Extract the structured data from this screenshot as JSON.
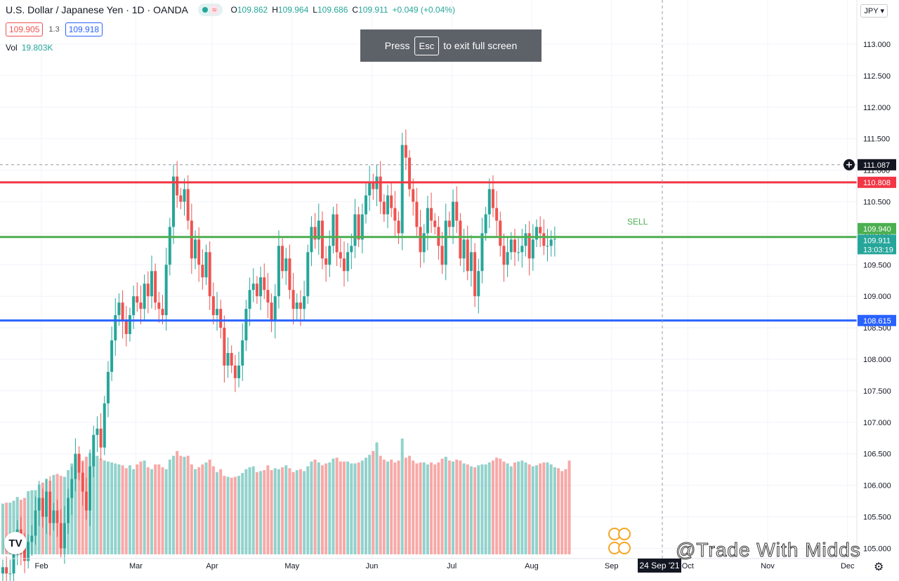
{
  "header": {
    "symbol_title": "U.S. Dollar / Japanese Yen · 1D · OANDA",
    "wave_icon": "≈",
    "ohlc": {
      "o_label": "O",
      "o": "109.862",
      "h_label": "H",
      "h": "109.964",
      "l_label": "L",
      "l": "109.686",
      "c_label": "C",
      "c": "109.911",
      "change": "+0.049 (+0.04%)"
    },
    "sell_price": "109.905",
    "spread": "1.3",
    "buy_price": "109.918",
    "vol_label": "Vol",
    "vol_value": "19.803K",
    "currency": "JPY"
  },
  "toast": {
    "pre": "Press",
    "key": "Esc",
    "post": "to exit full screen"
  },
  "crosshair": {
    "price_label": "111.087",
    "date_label": "24 Sep '21",
    "price": 111.087
  },
  "price_tags": {
    "resistance": "110.808",
    "sell_level": "109.940",
    "last": "109.911",
    "countdown": "13:03:19",
    "support": "108.615"
  },
  "annotation": {
    "sell_text": "SELL"
  },
  "watermark": "@Trade With Midds",
  "logo_text": "TV",
  "colors": {
    "up": "#26a69a",
    "down": "#ef5350",
    "resistance": "#f23645",
    "sell_line": "#4caf50",
    "support": "#2962ff"
  },
  "chart_data": {
    "type": "candlestick",
    "y_ticks": [
      "113.000",
      "112.500",
      "112.000",
      "111.500",
      "111.000",
      "110.500",
      "110.000",
      "109.500",
      "109.000",
      "108.500",
      "108.000",
      "107.500",
      "107.000",
      "106.500",
      "106.000",
      "105.500",
      "105.000"
    ],
    "ylim": [
      104.9,
      113.65
    ],
    "x_tick_labels": [
      "Feb",
      "Mar",
      "Apr",
      "May",
      "Jun",
      "Jul",
      "Aug",
      "Sep",
      "Oct",
      "Nov",
      "Dec"
    ],
    "months_start_index": [
      0,
      26,
      47,
      69,
      91,
      113,
      135,
      157,
      178,
      200,
      222
    ],
    "horizontal_levels": [
      {
        "name": "resistance",
        "value": 110.808
      },
      {
        "name": "sell",
        "value": 109.94
      },
      {
        "name": "support",
        "value": 108.615
      }
    ],
    "closes": [
      104.7,
      104.6,
      104.6,
      104.9,
      105.3,
      105.0,
      104.8,
      105.1,
      105.2,
      105.6,
      105.8,
      105.5,
      105.9,
      105.4,
      105.6,
      105.4,
      105.0,
      105.4,
      105.8,
      106.1,
      106.5,
      106.2,
      105.9,
      105.6,
      106.3,
      106.8,
      106.9,
      106.6,
      107.3,
      107.8,
      108.3,
      108.7,
      108.9,
      108.6,
      108.4,
      108.7,
      109.0,
      108.9,
      108.8,
      109.2,
      109.0,
      109.4,
      108.9,
      108.8,
      108.7,
      109.5,
      110.1,
      110.9,
      110.6,
      110.5,
      110.7,
      110.2,
      109.6,
      109.9,
      109.5,
      109.3,
      109.7,
      109.0,
      108.7,
      108.8,
      108.5,
      107.9,
      108.1,
      107.9,
      107.7,
      107.9,
      108.3,
      108.8,
      109.1,
      109.2,
      109.0,
      109.3,
      109.1,
      108.9,
      108.6,
      109.0,
      109.8,
      109.4,
      109.6,
      109.1,
      108.8,
      108.9,
      108.8,
      109.0,
      109.7,
      110.1,
      109.9,
      110.2,
      109.6,
      109.5,
      109.8,
      110.3,
      109.7,
      109.6,
      109.4,
      109.7,
      109.8,
      110.3,
      109.9,
      110.3,
      110.6,
      110.8,
      110.7,
      110.9,
      110.5,
      110.3,
      110.6,
      110.4,
      110.2,
      110.0,
      111.4,
      111.2,
      110.7,
      110.5,
      110.1,
      109.7,
      110.0,
      110.4,
      110.2,
      110.1,
      109.8,
      109.5,
      110.2,
      110.1,
      110.5,
      110.2,
      109.6,
      109.9,
      109.4,
      109.7,
      109.0,
      109.4,
      110.0,
      110.3,
      110.7,
      110.4,
      110.2,
      109.8,
      109.5,
      109.7,
      109.9,
      109.7,
      109.7,
      109.8,
      110.0,
      109.6,
      109.9,
      110.1,
      110.0,
      109.8,
      109.8,
      109.9,
      109.911
    ],
    "volumes_k": [
      53,
      54,
      54,
      56,
      60,
      57,
      59,
      66,
      67,
      67,
      73,
      75,
      79,
      77,
      83,
      84,
      82,
      81,
      88,
      95,
      101,
      104,
      98,
      102,
      106,
      102,
      103,
      100,
      98,
      97,
      96,
      95,
      94,
      93,
      90,
      93,
      89,
      94,
      97,
      98,
      91,
      89,
      94,
      94,
      91,
      89,
      99,
      103,
      108,
      103,
      102,
      103,
      94,
      89,
      91,
      94,
      96,
      99,
      92,
      86,
      89,
      82,
      81,
      80,
      81,
      82,
      85,
      89,
      91,
      92,
      86,
      87,
      88,
      93,
      88,
      90,
      89,
      91,
      93,
      90,
      86,
      88,
      89,
      87,
      92,
      97,
      99,
      96,
      93,
      95,
      96,
      100,
      101,
      97,
      97,
      97,
      95,
      95,
      96,
      98,
      101,
      104,
      108,
      117,
      103,
      99,
      97,
      99,
      96,
      98,
      121,
      101,
      103,
      98,
      95,
      96,
      96,
      94,
      96,
      94,
      96,
      100,
      102,
      98,
      97,
      99,
      98,
      95,
      94,
      92,
      91,
      93,
      94,
      94,
      96,
      98,
      101,
      100,
      97,
      95,
      92,
      96,
      97,
      98,
      96,
      94,
      92,
      93,
      95,
      96,
      96,
      94,
      91,
      90,
      87,
      89,
      98
    ]
  }
}
